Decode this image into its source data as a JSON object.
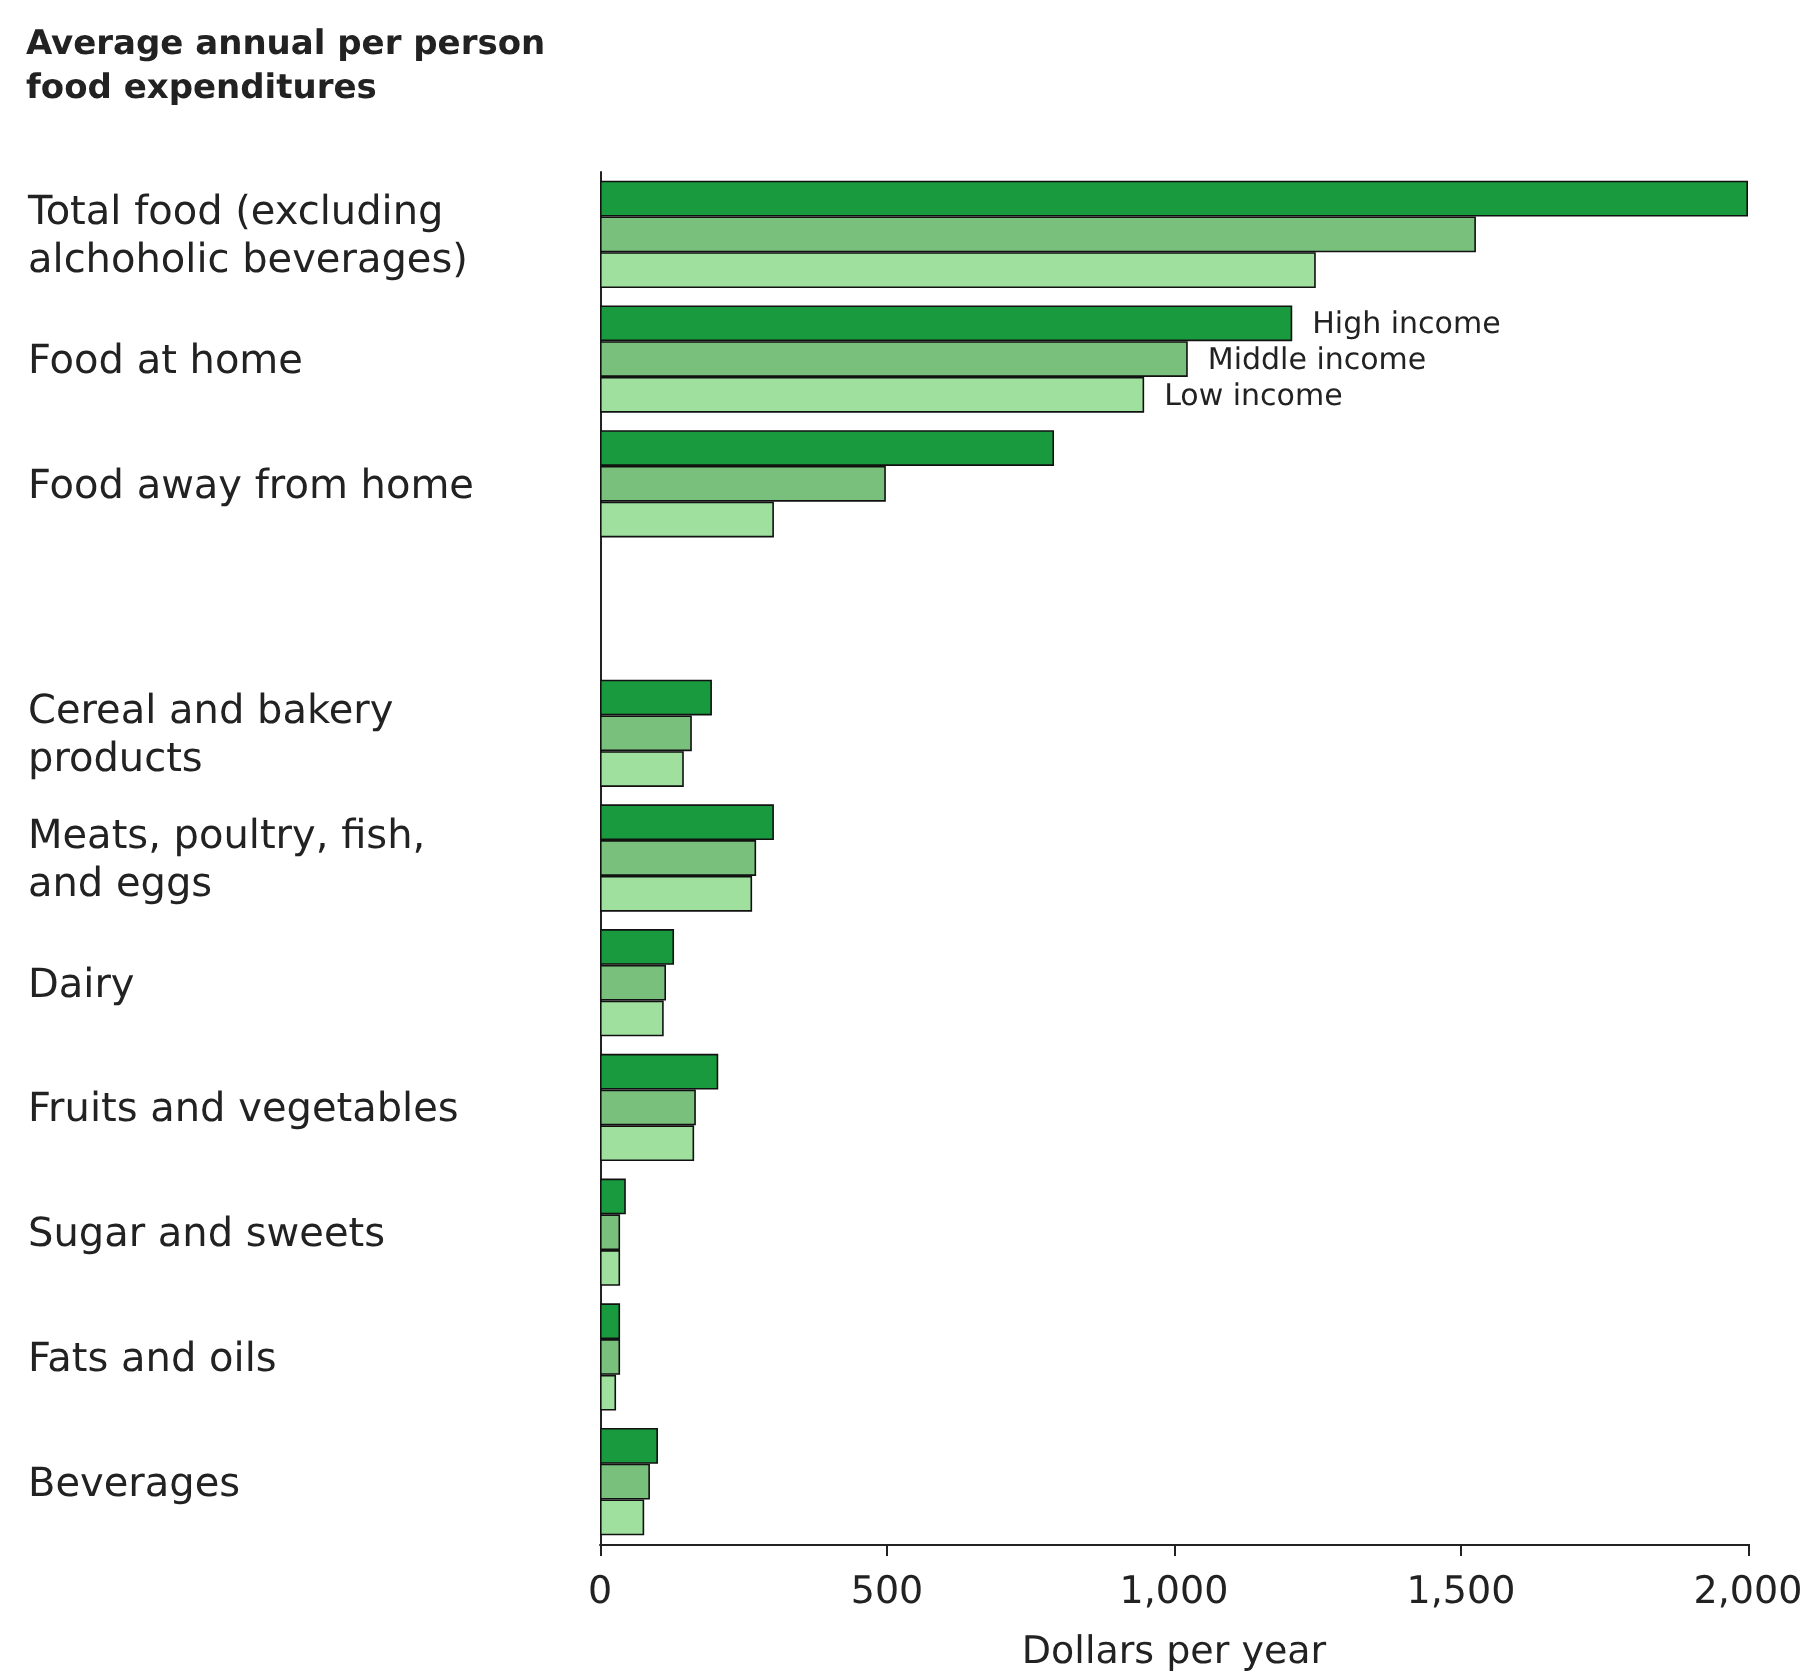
{
  "chart_data": {
    "type": "bar",
    "orientation": "horizontal",
    "title": "Average annual per person\nfood expenditures",
    "xlabel": "Dollars per year",
    "categories": [
      "Total food (excluding\nalchoholic beverages)",
      "Food at home",
      "Food away from home",
      null,
      "Cereal and bakery\nproducts",
      "Meats, poultry, fish,\nand eggs",
      "Dairy",
      "Fruits and vegetables",
      "Sugar and sweets",
      "Fats and oils",
      "Beverages"
    ],
    "series": [
      {
        "name": "High income",
        "color": "#1a9a3e",
        "values": [
          2000,
          1206,
          791,
          null,
          195,
          303,
          129,
          206,
          45,
          35,
          101
        ]
      },
      {
        "name": "Middle income",
        "color": "#78c07c",
        "values": [
          1526,
          1024,
          498,
          null,
          160,
          272,
          115,
          167,
          35,
          35,
          87
        ]
      },
      {
        "name": "Low income",
        "color": "#9fe09f",
        "values": [
          1247,
          948,
          303,
          null,
          146,
          265,
          111,
          164,
          35,
          28,
          77
        ]
      }
    ],
    "xlim": [
      0,
      2000
    ],
    "xticks": [
      0,
      500,
      {
        "value": 1000,
        "label": "1,000"
      },
      {
        "value": 1500,
        "label": "1,500"
      },
      {
        "value": 2000,
        "label": "2,000"
      }
    ],
    "grid": false,
    "legend": false
  }
}
